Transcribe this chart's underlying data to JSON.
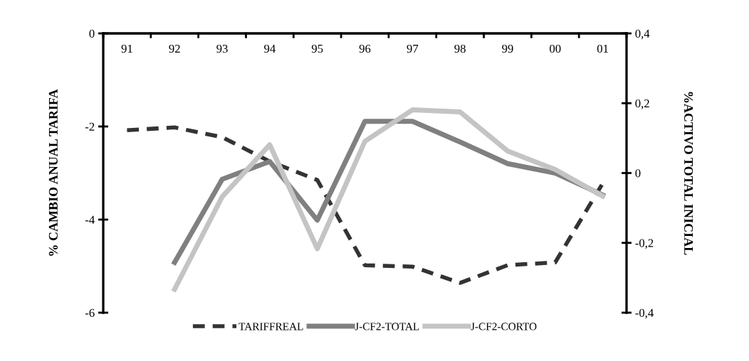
{
  "chart_data": {
    "type": "line",
    "ylabel": "% CAMBIO ANUAL TARIFA",
    "y2label": "%ACTIVO TOTAL INICIAL",
    "categories": [
      "91",
      "92",
      "93",
      "94",
      "95",
      "96",
      "97",
      "98",
      "99",
      "00",
      "01"
    ],
    "ylim": [
      -6,
      0
    ],
    "yticks": [
      -6,
      -4,
      -2,
      0
    ],
    "y2lim": [
      -0.4,
      0.4
    ],
    "y2ticks": [
      {
        "value": -0.4,
        "label": "-0,4"
      },
      {
        "value": -0.2,
        "label": "-0,2"
      },
      0,
      {
        "value": 0.2,
        "label": "0,2"
      },
      {
        "value": 0.4,
        "label": "0,4"
      }
    ],
    "grid": false,
    "legend": "bottom",
    "marker": "none",
    "series": [
      {
        "name": "TARIFFREAL",
        "color": "#333333",
        "line_style": "dashed",
        "values": [
          -2.08,
          -2.02,
          -2.23,
          -2.75,
          -3.15,
          -4.98,
          -5.01,
          -5.36,
          -4.98,
          -4.92,
          -3.22
        ]
      },
      {
        "name": "J-CF2-TOTAL",
        "color": "#808080",
        "line_style": "solid",
        "axis": "y2",
        "values": [
          null,
          -0.256,
          -0.018,
          0.033,
          -0.135,
          0.148,
          0.148,
          0.089,
          0.027,
          0.0,
          -0.063
        ]
      },
      {
        "name": "J-CF2-CORTO",
        "color": "#c4c4c4",
        "line_style": "solid",
        "axis": "y2",
        "values": [
          null,
          -0.333,
          -0.068,
          0.081,
          -0.217,
          0.091,
          0.181,
          0.175,
          0.063,
          0.01,
          -0.066
        ]
      }
    ]
  }
}
